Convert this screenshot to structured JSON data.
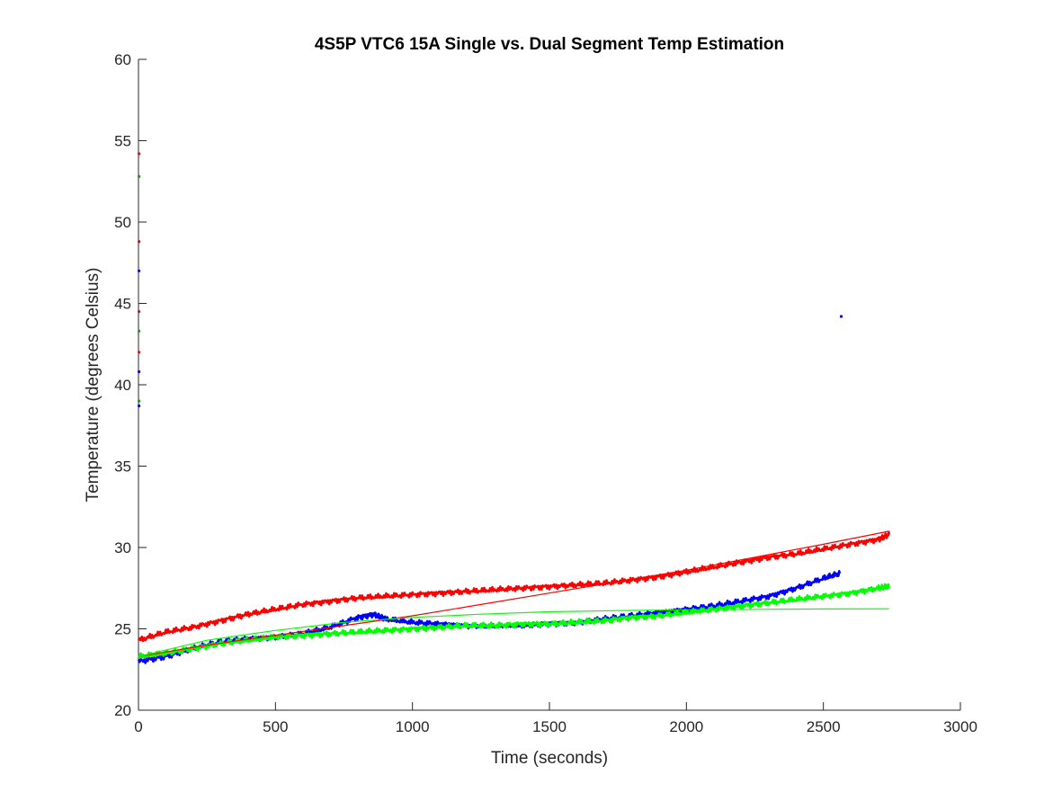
{
  "chart_data": {
    "type": "line",
    "title": "4S5P VTC6 15A Single vs. Dual Segment Temp Estimation",
    "xlabel": "Time (seconds)",
    "ylabel": "Temperature (degrees Celsius)",
    "xlim": [
      0,
      3000
    ],
    "ylim": [
      20,
      60
    ],
    "xticks": [
      0,
      500,
      1000,
      1500,
      2000,
      2500,
      3000
    ],
    "yticks": [
      20,
      25,
      30,
      35,
      40,
      45,
      50,
      55,
      60
    ],
    "grid": false,
    "legend": "none",
    "series": [
      {
        "color": "#ff0000",
        "style": "measured",
        "x": [
          0,
          100,
          200,
          300,
          400,
          500,
          600,
          700,
          800,
          900,
          1000,
          1100,
          1200,
          1300,
          1400,
          1500,
          1600,
          1700,
          1800,
          1900,
          2000,
          2100,
          2200,
          2300,
          2400,
          2500,
          2600,
          2700,
          2740
        ],
        "y": [
          24.3,
          24.8,
          25.1,
          25.5,
          25.9,
          26.2,
          26.5,
          26.7,
          26.9,
          27.0,
          27.1,
          27.2,
          27.3,
          27.4,
          27.5,
          27.6,
          27.7,
          27.8,
          28.0,
          28.2,
          28.5,
          28.8,
          29.1,
          29.4,
          29.6,
          29.9,
          30.2,
          30.5,
          30.8
        ]
      },
      {
        "color": "#0000ff",
        "style": "measured",
        "x": [
          0,
          100,
          200,
          300,
          400,
          500,
          600,
          700,
          800,
          860,
          900,
          1000,
          1100,
          1200,
          1300,
          1400,
          1500,
          1600,
          1700,
          1800,
          1900,
          2000,
          2100,
          2200,
          2300,
          2400,
          2500,
          2560
        ],
        "y": [
          23.0,
          23.3,
          23.8,
          24.2,
          24.4,
          24.5,
          24.7,
          25.1,
          25.7,
          25.9,
          25.6,
          25.4,
          25.3,
          25.2,
          25.2,
          25.2,
          25.3,
          25.4,
          25.6,
          25.8,
          26.0,
          26.2,
          26.4,
          26.7,
          27.0,
          27.5,
          28.1,
          28.4
        ]
      },
      {
        "color": "#00ff00",
        "style": "measured",
        "x": [
          0,
          100,
          200,
          300,
          400,
          500,
          600,
          700,
          800,
          900,
          1000,
          1100,
          1200,
          1300,
          1400,
          1500,
          1600,
          1700,
          1800,
          1900,
          2000,
          2100,
          2200,
          2300,
          2400,
          2500,
          2600,
          2700,
          2740
        ],
        "y": [
          23.3,
          23.5,
          23.8,
          24.1,
          24.3,
          24.5,
          24.6,
          24.7,
          24.8,
          24.9,
          25.0,
          25.1,
          25.2,
          25.2,
          25.3,
          25.3,
          25.4,
          25.5,
          25.7,
          25.8,
          26.0,
          26.2,
          26.4,
          26.6,
          26.8,
          27.0,
          27.2,
          27.5,
          27.6
        ]
      },
      {
        "color": "#ff0000",
        "style": "estimate",
        "x": [
          0,
          250,
          500,
          750,
          1000,
          1250,
          1500,
          1750,
          2000,
          2250,
          2500,
          2740
        ],
        "y": [
          23.3,
          24.0,
          24.6,
          25.2,
          25.8,
          26.5,
          27.2,
          27.9,
          28.6,
          29.4,
          30.2,
          31.0
        ]
      },
      {
        "color": "#00ff00",
        "style": "estimate",
        "x": [
          0,
          250,
          500,
          750,
          1000,
          1250,
          1500,
          1750,
          2000,
          2250,
          2500,
          2740
        ],
        "y": [
          23.3,
          24.3,
          24.9,
          25.4,
          25.7,
          25.9,
          26.05,
          26.12,
          26.17,
          26.2,
          26.22,
          26.23
        ]
      }
    ],
    "scatter_points": [
      {
        "x": 2565,
        "y": 44.2,
        "color": "#0000ff"
      },
      {
        "x": 2,
        "y": 54.2,
        "color": "#ff0000"
      },
      {
        "x": 2,
        "y": 52.8,
        "color": "#00aa00"
      },
      {
        "x": 2,
        "y": 48.8,
        "color": "#ff0000"
      },
      {
        "x": 2,
        "y": 47.0,
        "color": "#0000ff"
      },
      {
        "x": 2,
        "y": 44.5,
        "color": "#ff0000"
      },
      {
        "x": 2,
        "y": 43.3,
        "color": "#00aa00"
      },
      {
        "x": 2,
        "y": 42.0,
        "color": "#ff0000"
      },
      {
        "x": 2,
        "y": 40.8,
        "color": "#0000ff"
      },
      {
        "x": 2,
        "y": 39.0,
        "color": "#00aa00"
      },
      {
        "x": 2,
        "y": 38.7,
        "color": "#0000ff"
      }
    ]
  }
}
